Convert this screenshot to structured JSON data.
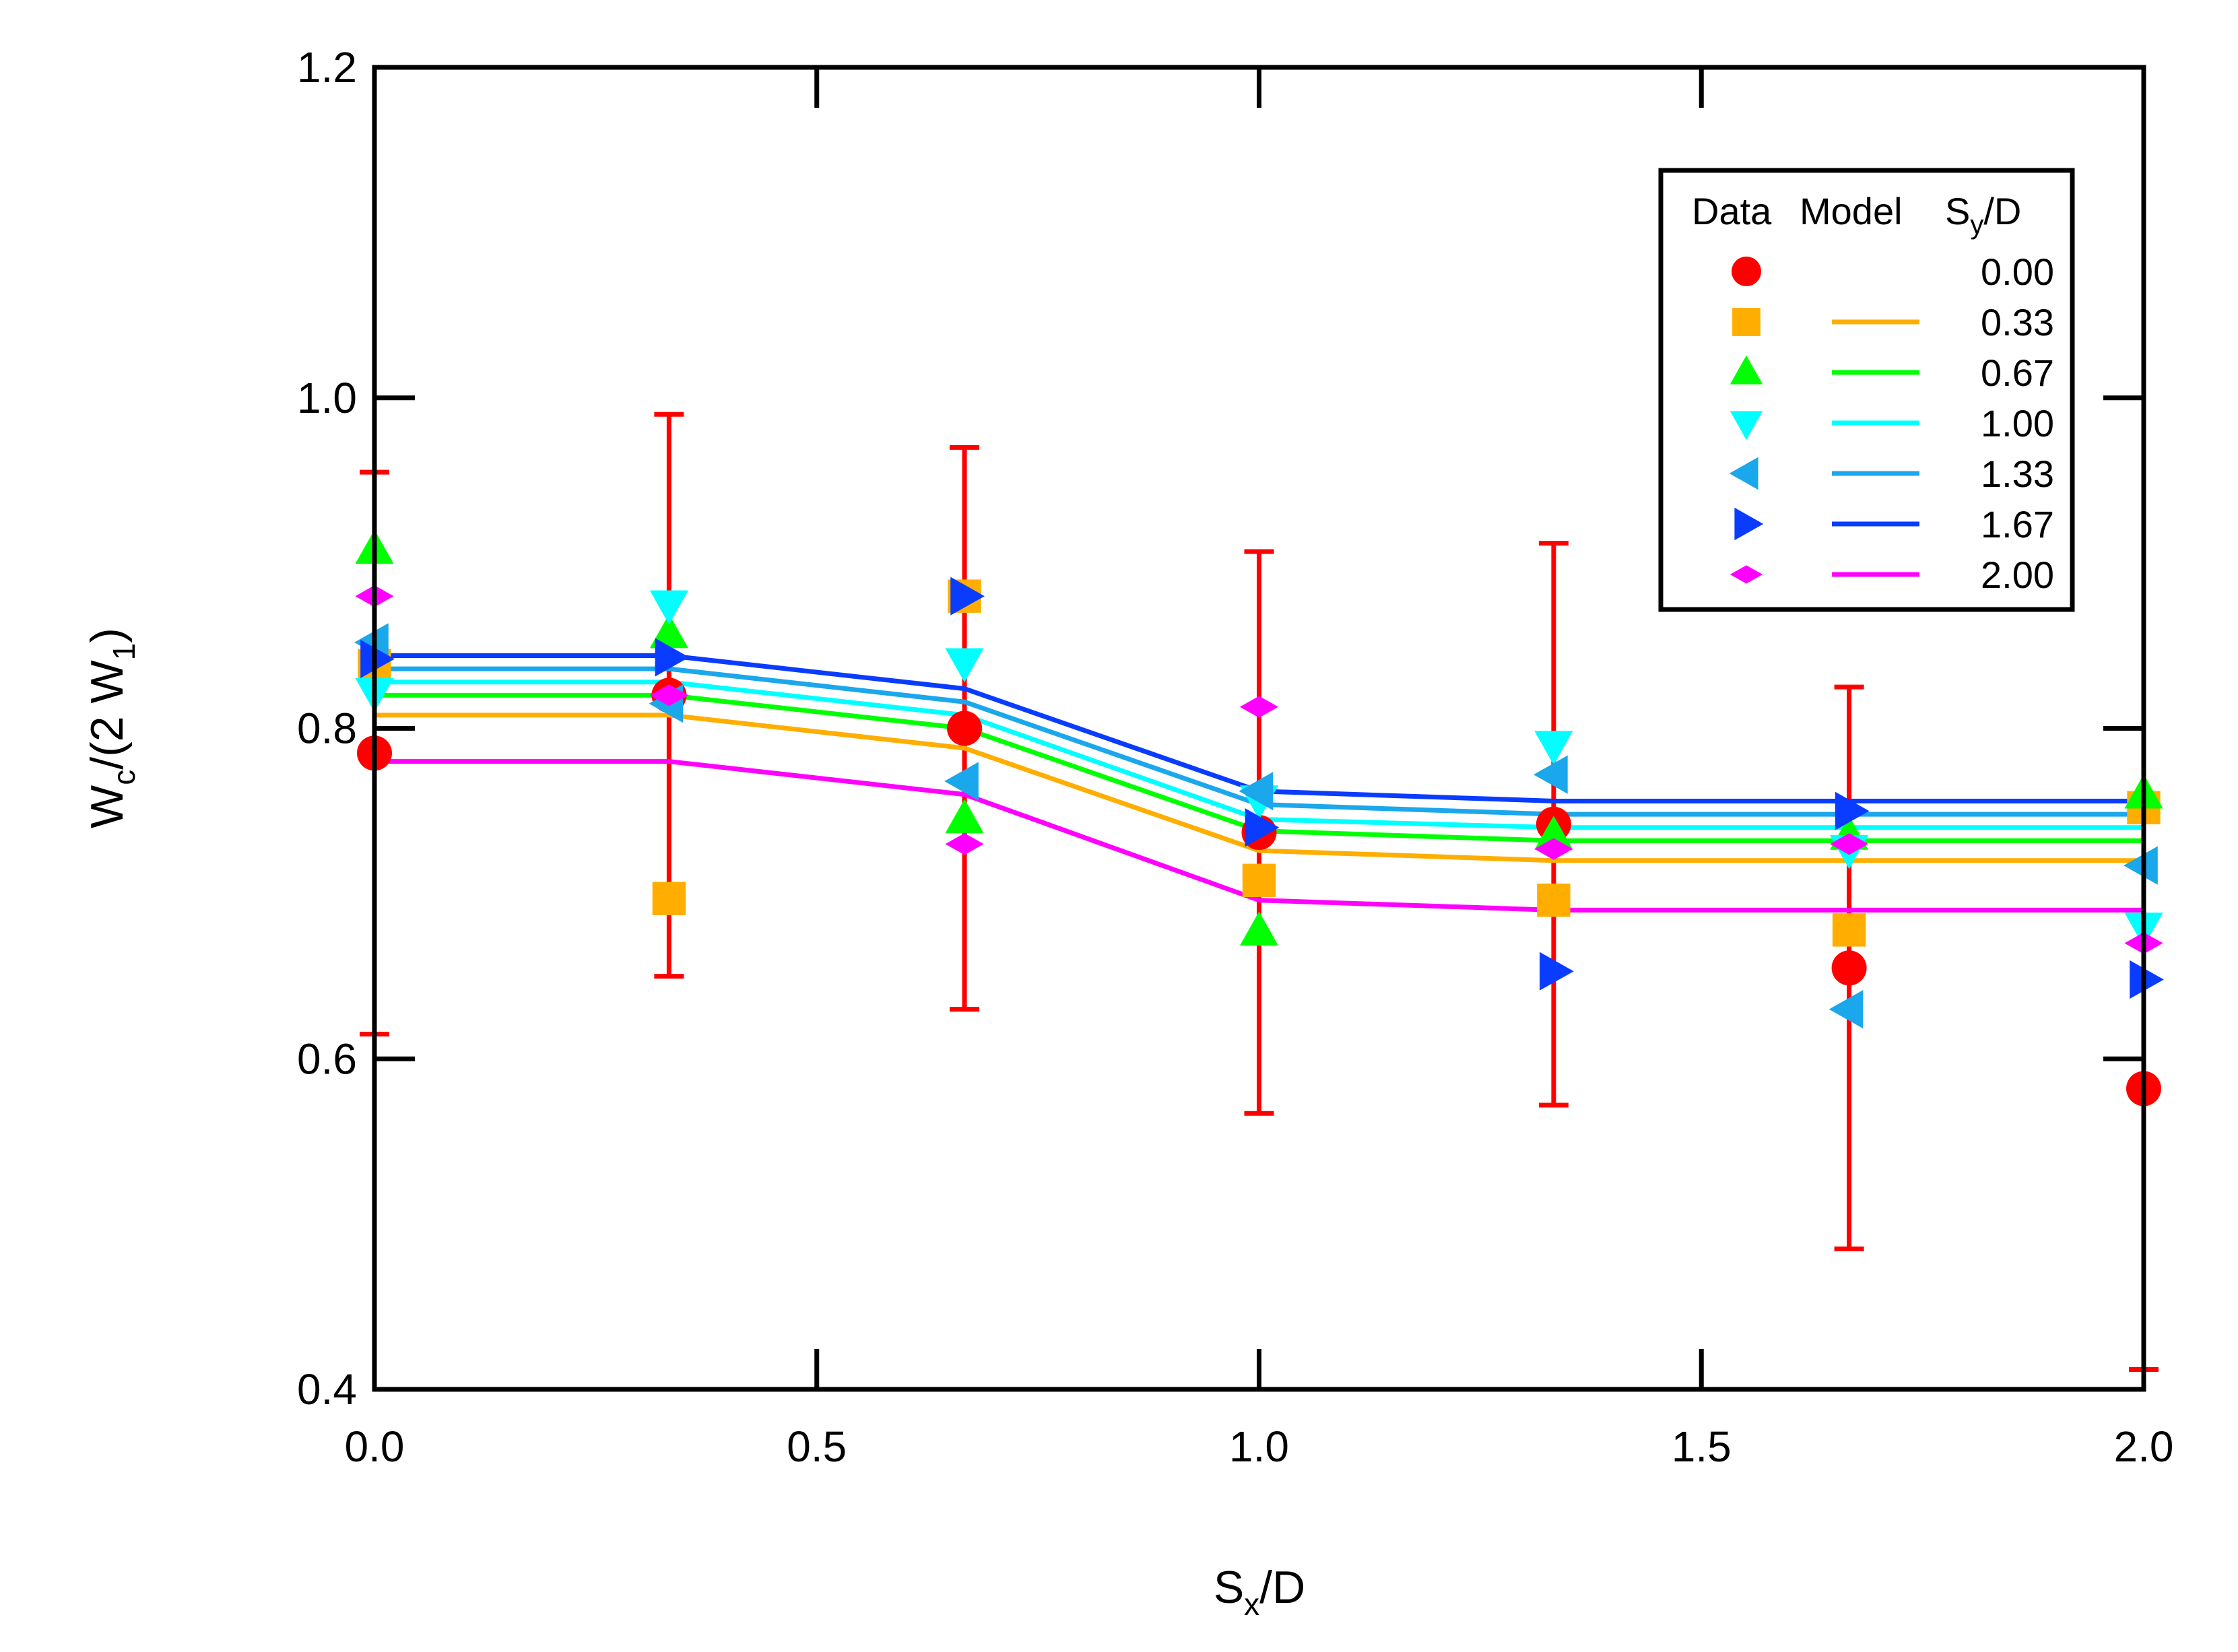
{
  "chart_data": {
    "type": "scatter",
    "xlabel": "S",
    "xlabel_sub": "x",
    "xlabel_tail": "/D",
    "ylabel_parts": [
      "W",
      "c",
      "/(2 W",
      "1",
      ")"
    ],
    "xlim": [
      0,
      2
    ],
    "ylim": [
      0.4,
      1.2
    ],
    "x_ticks": [
      0,
      0.5,
      1,
      1.5,
      2
    ],
    "x_tick_labels": [
      "0.0",
      "0.5",
      "1.0",
      "1.5",
      "2.0"
    ],
    "y_ticks": [
      0.4,
      0.6,
      0.8,
      1.0,
      1.2
    ],
    "y_tick_labels": [
      "0.4",
      "0.6",
      "0.8",
      "1.0",
      "1.2"
    ],
    "grid": false,
    "legend": {
      "position": "top-right",
      "header_data": "Data",
      "header_model": "Model",
      "header_sy": "S",
      "header_sy_sub": "y",
      "header_sy_tail": "/D"
    },
    "x": [
      0,
      0.333,
      0.667,
      1.0,
      1.333,
      1.667,
      2.0
    ],
    "series": [
      {
        "name": "0.00",
        "color": "#ff0000",
        "marker": "circle",
        "data": [
          0.785,
          0.82,
          0.8,
          0.737,
          0.742,
          0.655,
          0.582
        ],
        "model": null,
        "error": [
          0.17,
          0.17,
          0.17,
          0.17,
          0.17,
          0.17,
          0.17
        ]
      },
      {
        "name": "0.33",
        "color": "#ffae00",
        "marker": "square",
        "data": [
          0.838,
          0.697,
          0.88,
          0.708,
          0.696,
          0.678,
          0.752
        ],
        "model": [
          0.808,
          0.808,
          0.788,
          0.726,
          0.72,
          0.72,
          0.72
        ]
      },
      {
        "name": "0.67",
        "color": "#00ff00",
        "marker": "triangle-up",
        "data": [
          0.908,
          0.857,
          0.745,
          0.677,
          0.735,
          0.735,
          0.76
        ],
        "model": [
          0.82,
          0.82,
          0.8,
          0.738,
          0.732,
          0.732,
          0.732
        ]
      },
      {
        "name": "1.00",
        "color": "#00ffff",
        "marker": "triangle-down",
        "data": [
          0.822,
          0.875,
          0.84,
          0.757,
          0.79,
          0.727,
          0.68
        ],
        "model": [
          0.828,
          0.828,
          0.808,
          0.745,
          0.74,
          0.74,
          0.74
        ]
      },
      {
        "name": "1.33",
        "color": "#1aa7ec",
        "marker": "triangle-left",
        "data": [
          0.852,
          0.815,
          0.768,
          0.762,
          0.772,
          0.63,
          0.717
        ],
        "model": [
          0.836,
          0.836,
          0.816,
          0.754,
          0.748,
          0.748,
          0.748
        ]
      },
      {
        "name": "1.67",
        "color": "#0a3cff",
        "marker": "triangle-right",
        "data": [
          0.842,
          0.843,
          0.88,
          0.74,
          0.653,
          0.75,
          0.648
        ],
        "model": [
          0.844,
          0.844,
          0.824,
          0.762,
          0.756,
          0.756,
          0.756
        ]
      },
      {
        "name": "2.00",
        "color": "#ff00ff",
        "marker": "diamond",
        "data": [
          0.88,
          0.82,
          0.73,
          0.813,
          0.727,
          0.73,
          0.67
        ],
        "model": [
          0.78,
          0.78,
          0.76,
          0.696,
          0.69,
          0.69,
          0.69
        ]
      }
    ]
  }
}
